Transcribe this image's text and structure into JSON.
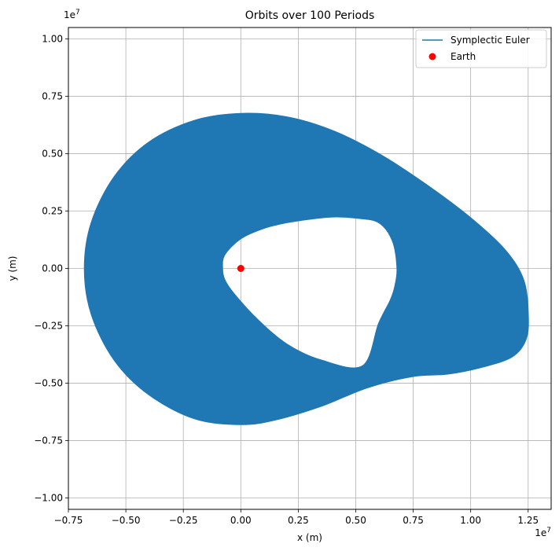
{
  "chart_data": {
    "type": "line",
    "title": "Orbits over 100 Periods",
    "xlabel": "x (m)",
    "ylabel": "y (m)",
    "x_offset_label": "1e7",
    "y_offset_label": "1e7",
    "xlim": [
      -0.75,
      1.35
    ],
    "ylim": [
      -1.05,
      1.05
    ],
    "x_ticks": [
      -0.75,
      -0.5,
      -0.25,
      0.0,
      0.25,
      0.5,
      0.75,
      1.0,
      1.25
    ],
    "x_tick_labels": [
      "−0.75",
      "−0.50",
      "−0.25",
      "0.00",
      "0.25",
      "0.50",
      "0.75",
      "1.00",
      "1.25"
    ],
    "y_ticks": [
      1.0,
      0.75,
      0.5,
      0.25,
      0.0,
      -0.25,
      -0.5,
      -0.75,
      -1.0
    ],
    "y_tick_labels": [
      "1.00",
      "0.75",
      "0.50",
      "0.25",
      "0.00",
      "−0.25",
      "−0.50",
      "−0.75",
      "−1.00"
    ],
    "grid": true,
    "legend_position": "top-right",
    "colors": {
      "orbit": "#1f77b4",
      "earth": "#ff0000"
    },
    "series": [
      {
        "name": "Symplectic Euler",
        "kind": "line",
        "color": "#1f77b4",
        "description_of_shape": "precessing elliptical orbits forming a filled band",
        "outer_boundary": [
          {
            "x": 0.0,
            "y": 0.675
          },
          {
            "x": 0.2,
            "y": 0.66
          },
          {
            "x": 0.4,
            "y": 0.6
          },
          {
            "x": 0.6,
            "y": 0.5
          },
          {
            "x": 0.8,
            "y": 0.37
          },
          {
            "x": 1.0,
            "y": 0.22
          },
          {
            "x": 1.15,
            "y": 0.08
          },
          {
            "x": 1.23,
            "y": -0.05
          },
          {
            "x": 1.25,
            "y": -0.2
          },
          {
            "x": 1.24,
            "y": -0.31
          },
          {
            "x": 1.18,
            "y": -0.385
          },
          {
            "x": 1.05,
            "y": -0.43
          },
          {
            "x": 0.9,
            "y": -0.46
          },
          {
            "x": 0.75,
            "y": -0.47
          },
          {
            "x": 0.55,
            "y": -0.52
          },
          {
            "x": 0.35,
            "y": -0.6
          },
          {
            "x": 0.15,
            "y": -0.66
          },
          {
            "x": 0.0,
            "y": -0.68
          },
          {
            "x": -0.2,
            "y": -0.655
          },
          {
            "x": -0.4,
            "y": -0.55
          },
          {
            "x": -0.55,
            "y": -0.4
          },
          {
            "x": -0.65,
            "y": -0.2
          },
          {
            "x": -0.68,
            "y": 0.0
          },
          {
            "x": -0.65,
            "y": 0.2
          },
          {
            "x": -0.55,
            "y": 0.4
          },
          {
            "x": -0.4,
            "y": 0.55
          },
          {
            "x": -0.2,
            "y": 0.645
          }
        ],
        "inner_boundary": [
          {
            "x": -0.08,
            "y": 0.0
          },
          {
            "x": -0.07,
            "y": 0.06
          },
          {
            "x": 0.0,
            "y": 0.13
          },
          {
            "x": 0.1,
            "y": 0.175
          },
          {
            "x": 0.2,
            "y": 0.2
          },
          {
            "x": 0.3,
            "y": 0.215
          },
          {
            "x": 0.4,
            "y": 0.225
          },
          {
            "x": 0.5,
            "y": 0.22
          },
          {
            "x": 0.6,
            "y": 0.2
          },
          {
            "x": 0.66,
            "y": 0.12
          },
          {
            "x": 0.68,
            "y": 0.0
          },
          {
            "x": 0.67,
            "y": -0.08
          },
          {
            "x": 0.65,
            "y": -0.14
          },
          {
            "x": 0.6,
            "y": -0.24
          },
          {
            "x": 0.53,
            "y": -0.425
          },
          {
            "x": 0.35,
            "y": -0.4
          },
          {
            "x": 0.2,
            "y": -0.33
          },
          {
            "x": 0.07,
            "y": -0.22
          },
          {
            "x": -0.03,
            "y": -0.11
          },
          {
            "x": -0.07,
            "y": -0.05
          }
        ]
      },
      {
        "name": "Earth",
        "kind": "marker",
        "color": "#ff0000",
        "x": 0.0,
        "y": 0.0
      }
    ]
  }
}
